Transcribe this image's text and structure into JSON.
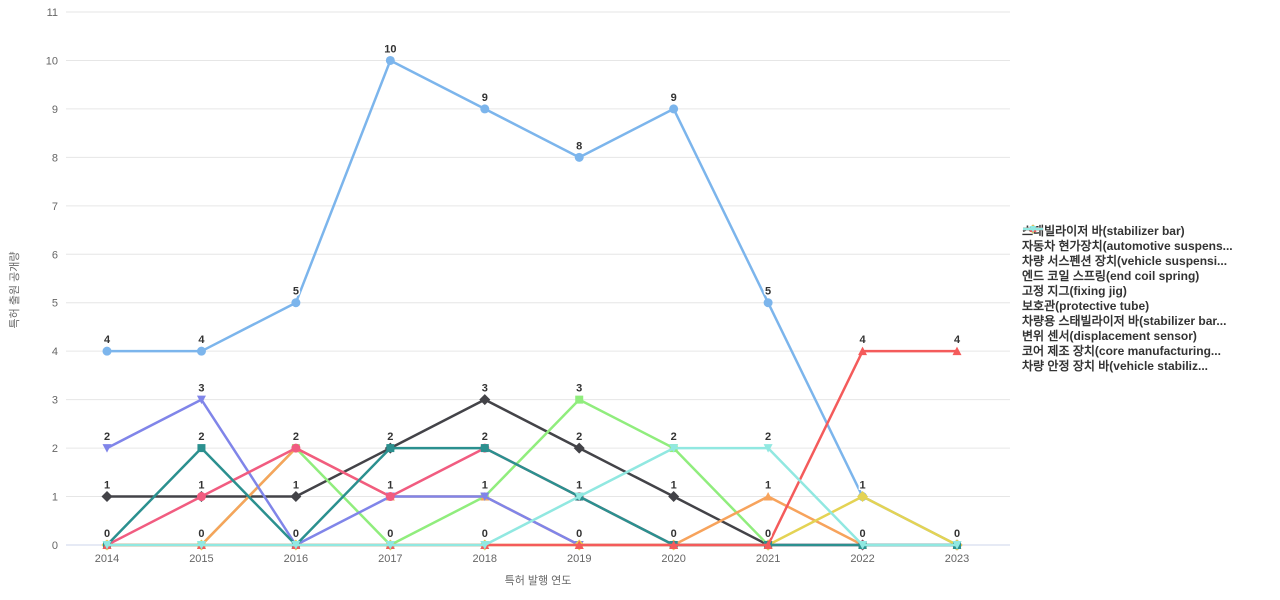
{
  "chart_data": {
    "type": "line",
    "title": "",
    "xlabel": "특허 발행 연도",
    "ylabel": "특허 출원 공개량",
    "categories": [
      "2014",
      "2015",
      "2016",
      "2017",
      "2018",
      "2019",
      "2020",
      "2021",
      "2022",
      "2023"
    ],
    "ylim": [
      0,
      11
    ],
    "ytick_step": 1,
    "grid": true,
    "legend_position": "right",
    "axis_line_color": "#ccd6eb",
    "grid_color": "#e6e6e6",
    "tick_label_color": "#666666",
    "data_label_color": "#333333",
    "series": [
      {
        "name": "스태빌라이저 바(stabilizer bar)",
        "color": "#7cb5ec",
        "marker": "circle",
        "values": [
          4,
          4,
          5,
          10,
          9,
          8,
          9,
          5,
          1,
          0
        ]
      },
      {
        "name": "자동차 현가장치(automotive suspens...",
        "color": "#434348",
        "marker": "diamond",
        "values": [
          1,
          1,
          1,
          2,
          3,
          2,
          1,
          0,
          0,
          0
        ]
      },
      {
        "name": "차량 서스펜션 장치(vehicle suspensi...",
        "color": "#90ed7d",
        "marker": "square",
        "values": [
          0,
          0,
          2,
          0,
          1,
          3,
          2,
          0,
          0,
          0
        ]
      },
      {
        "name": "엔드 코일 스프링(end coil spring)",
        "color": "#f7a35c",
        "marker": "triangle",
        "values": [
          0,
          0,
          2,
          1,
          1,
          0,
          0,
          1,
          0,
          0
        ]
      },
      {
        "name": "고정 지그(fixing jig)",
        "color": "#8085e9",
        "marker": "triangle-down",
        "values": [
          2,
          3,
          0,
          1,
          1,
          0,
          0,
          0,
          0,
          0
        ]
      },
      {
        "name": "보호관(protective tube)",
        "color": "#f15c80",
        "marker": "circle",
        "values": [
          0,
          1,
          2,
          1,
          2,
          1,
          0,
          0,
          0,
          0
        ]
      },
      {
        "name": "차량용 스태빌라이저 바(stabilizer bar...",
        "color": "#e4d354",
        "marker": "diamond",
        "values": [
          0,
          0,
          0,
          0,
          0,
          0,
          0,
          0,
          1,
          0
        ]
      },
      {
        "name": "변위 센서(displacement sensor)",
        "color": "#2b908f",
        "marker": "square",
        "values": [
          0,
          2,
          0,
          2,
          2,
          1,
          0,
          0,
          0,
          0
        ]
      },
      {
        "name": "코어 제조 장치(core manufacturing...",
        "color": "#f45b5b",
        "marker": "triangle",
        "values": [
          0,
          0,
          0,
          0,
          0,
          0,
          0,
          0,
          4,
          4
        ]
      },
      {
        "name": "차량 안정 장치 바(vehicle stabiliz...",
        "color": "#91e8e1",
        "marker": "triangle-down",
        "values": [
          0,
          0,
          0,
          0,
          0,
          1,
          2,
          2,
          0,
          0
        ]
      }
    ]
  }
}
